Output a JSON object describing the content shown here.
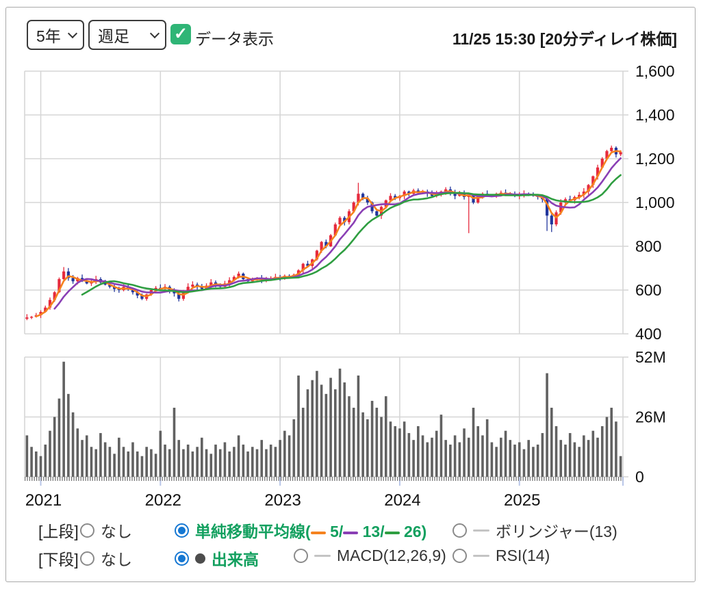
{
  "header": {
    "period": "5年",
    "interval": "週足",
    "data_display_label": "データ表示",
    "timestamp": "11/25 15:30 [20分ディレイ株価]"
  },
  "ui_colors": {
    "checkbox_green": "#2fb576",
    "radio_selected_blue": "#1577d2",
    "selected_text_green": "#13a05f"
  },
  "legend": {
    "upper": {
      "section": "[上段]",
      "none_label": "なし",
      "sma_name": "単純移動平均線(",
      "sma_parts": [
        {
          "color": "#f5821f",
          "text": "5/"
        },
        {
          "color": "#8a3fb5",
          "text": "13/"
        },
        {
          "color": "#2f9e41",
          "text": "26)"
        }
      ],
      "bollinger_label": "ボリンジャー(13)"
    },
    "lower": {
      "section": "[下段]",
      "none_label": "なし",
      "volume_label": "出来高",
      "macd_label": "MACD(12,26,9)",
      "rsi_label": "RSI(14)"
    }
  },
  "chart_data": {
    "type": "candlestick+volume (weekly, 5 years, values plotted biweekly)",
    "price_axis": {
      "min": 400,
      "max": 1600,
      "tick_values": [
        1600,
        1400,
        1200,
        1000,
        800,
        600,
        400
      ],
      "tick_labels": [
        "1,600",
        "1,400",
        "1,200",
        "1,000",
        "800",
        "600",
        "400"
      ]
    },
    "volume_axis": {
      "min": 0,
      "max": 52,
      "tick_values": [
        52,
        26,
        0
      ],
      "tick_labels": [
        "52M",
        "26M",
        "0"
      ]
    },
    "year_labels": [
      "2021",
      "2022",
      "2023",
      "2024",
      "2025"
    ],
    "year_tick_indices": [
      3,
      29,
      55,
      81,
      107
    ],
    "closes": [
      475,
      478,
      485,
      500,
      520,
      555,
      590,
      650,
      685,
      655,
      640,
      655,
      640,
      630,
      640,
      650,
      635,
      625,
      615,
      605,
      600,
      615,
      605,
      590,
      575,
      560,
      580,
      600,
      610,
      605,
      615,
      600,
      585,
      560,
      590,
      615,
      625,
      615,
      605,
      620,
      635,
      625,
      615,
      630,
      645,
      660,
      675,
      650,
      640,
      650,
      655,
      645,
      650,
      655,
      660,
      655,
      665,
      660,
      670,
      690,
      720,
      710,
      740,
      780,
      820,
      800,
      850,
      900,
      930,
      910,
      960,
      1000,
      1040,
      1020,
      1000,
      960,
      940,
      980,
      1010,
      1030,
      1020,
      1030,
      1050,
      1040,
      1055,
      1045,
      1050,
      1040,
      1030,
      1040,
      1050,
      1060,
      1045,
      1030,
      1040,
      1025,
      1035,
      1000,
      1030,
      1040,
      1035,
      1030,
      1040,
      1045,
      1035,
      1040,
      1030,
      1035,
      1040,
      1035,
      1030,
      1025,
      1015,
      940,
      900,
      955,
      1000,
      1015,
      1010,
      1025,
      1035,
      1050,
      1080,
      1120,
      1160,
      1200,
      1235,
      1250,
      1220,
      1230
    ],
    "volumes_m": [
      18,
      13,
      11,
      9,
      14,
      20,
      26,
      34,
      50,
      36,
      28,
      21,
      16,
      18,
      13,
      12,
      19,
      15,
      13,
      10,
      17,
      13,
      11,
      15,
      11,
      9,
      13,
      12,
      10,
      20,
      14,
      12,
      30,
      16,
      12,
      14,
      11,
      13,
      17,
      12,
      10,
      14,
      12,
      15,
      11,
      13,
      18,
      14,
      11,
      13,
      12,
      16,
      12,
      14,
      13,
      16,
      20,
      18,
      25,
      44,
      30,
      38,
      42,
      46,
      40,
      36,
      43,
      38,
      47,
      41,
      35,
      30,
      44,
      28,
      25,
      33,
      30,
      26,
      35,
      24,
      22,
      21,
      24,
      19,
      16,
      22,
      18,
      15,
      17,
      20,
      27,
      16,
      14,
      18,
      15,
      21,
      17,
      30,
      22,
      18,
      25,
      15,
      13,
      17,
      20,
      16,
      14,
      15,
      12,
      16,
      13,
      14,
      19,
      45,
      30,
      22,
      16,
      14,
      19,
      15,
      13,
      18,
      16,
      20,
      17,
      22,
      26,
      30,
      24,
      9
    ],
    "wick_overrides": {
      "8": {
        "high": 705
      },
      "72": {
        "high": 1090
      },
      "96": {
        "low": 860
      },
      "113": {
        "low": 870
      },
      "114": {
        "low": 865
      },
      "127": {
        "high": 1260
      }
    },
    "ma_lines": [
      {
        "label": "5",
        "window": 3,
        "color": "#f5821f"
      },
      {
        "label": "13",
        "window": 7,
        "color": "#8a3fb5"
      },
      {
        "label": "26",
        "window": 13,
        "color": "#2f9e41"
      }
    ],
    "colors": {
      "up_candle": "#e62a3d",
      "down_candle": "#22369c",
      "volume_bar": "#616161",
      "grid": "#d6d6d6",
      "axis_text": "#111111",
      "year_tick": "#b9c6e8"
    }
  }
}
